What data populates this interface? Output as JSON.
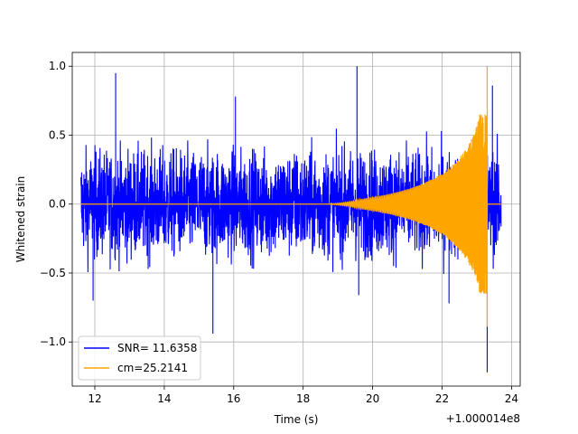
{
  "chart_data": {
    "type": "line",
    "title": "",
    "xlabel": "Time (s)",
    "ylabel": "Whitened strain",
    "x_offset_label": "+1.000014e8",
    "xlim": [
      11.35,
      24.25
    ],
    "ylim": [
      -1.32,
      1.1
    ],
    "grid": true,
    "legend_position": "lower-left",
    "x_ticks": [
      12,
      14,
      16,
      18,
      20,
      22,
      24
    ],
    "y_ticks": [
      -1.0,
      -0.5,
      0.0,
      0.5,
      1.0
    ],
    "x_tick_labels": [
      "12",
      "14",
      "16",
      "18",
      "20",
      "22",
      "24"
    ],
    "y_tick_labels": [
      "−1.0",
      "−0.5",
      "0.0",
      "0.5",
      "1.0"
    ],
    "series": [
      {
        "name": "SNR= 11.6358",
        "color": "#0000ff",
        "x_range": [
          11.6,
          23.7
        ],
        "noise_amplitude": 0.38,
        "peak_max": 1.0,
        "peak_min": -1.22
      },
      {
        "name": "cm=25.2141",
        "color": "#ffa500",
        "x_range": [
          11.6,
          23.7
        ],
        "chirp_start": 18.5,
        "merger_time": 23.3,
        "peak_max": 1.0,
        "peak_min": -0.89
      }
    ]
  }
}
